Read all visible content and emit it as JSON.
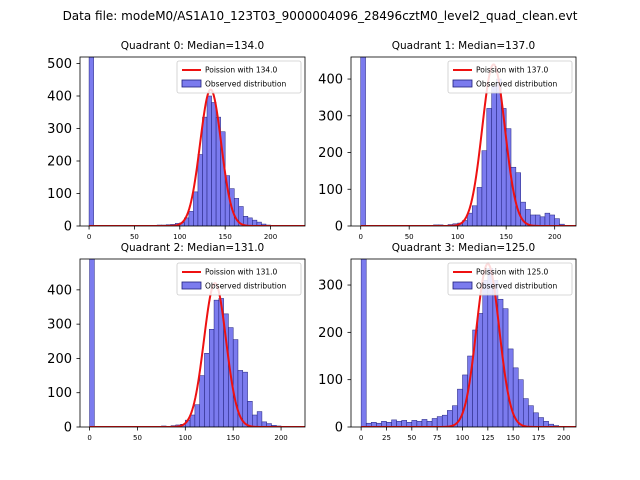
{
  "figure": {
    "suptitle": "Data file: modeM0/AS1A10_123T03_9000004096_28496cztM0_level2_quad_clean.evt"
  },
  "chart_data": [
    {
      "type": "bar",
      "title": "Quadrant 0: Median=134.0",
      "legend": {
        "position": "top-right",
        "curve_label": "Poission with 134.0",
        "hist_label": "Observed distribution"
      },
      "xlim": [
        -10,
        238
      ],
      "ylim": [
        0,
        520
      ],
      "xticks": [
        0,
        50,
        100,
        150,
        200
      ],
      "yticks": [
        0,
        100,
        200,
        300,
        400,
        500
      ],
      "bin_width": 5,
      "median": 134.0,
      "curve_peak": 420,
      "curve_sigma": 11.6,
      "bins": [
        {
          "x": 0,
          "count": 520
        },
        {
          "x": 55,
          "count": 2
        },
        {
          "x": 65,
          "count": 2
        },
        {
          "x": 75,
          "count": 3
        },
        {
          "x": 80,
          "count": 3
        },
        {
          "x": 85,
          "count": 4
        },
        {
          "x": 90,
          "count": 5
        },
        {
          "x": 95,
          "count": 8
        },
        {
          "x": 100,
          "count": 10
        },
        {
          "x": 105,
          "count": 25
        },
        {
          "x": 110,
          "count": 45
        },
        {
          "x": 115,
          "count": 105
        },
        {
          "x": 120,
          "count": 220
        },
        {
          "x": 125,
          "count": 335
        },
        {
          "x": 130,
          "count": 400
        },
        {
          "x": 135,
          "count": 380
        },
        {
          "x": 140,
          "count": 335
        },
        {
          "x": 145,
          "count": 290
        },
        {
          "x": 150,
          "count": 155
        },
        {
          "x": 155,
          "count": 115
        },
        {
          "x": 160,
          "count": 85
        },
        {
          "x": 165,
          "count": 60
        },
        {
          "x": 170,
          "count": 30
        },
        {
          "x": 175,
          "count": 25
        },
        {
          "x": 180,
          "count": 18
        },
        {
          "x": 185,
          "count": 12
        },
        {
          "x": 190,
          "count": 6
        },
        {
          "x": 195,
          "count": 3
        },
        {
          "x": 200,
          "count": 2
        }
      ]
    },
    {
      "type": "bar",
      "title": "Quadrant 1: Median=137.0",
      "legend": {
        "position": "top-right",
        "curve_label": "Poission with 137.0",
        "hist_label": "Observed distribution"
      },
      "xlim": [
        -10,
        222
      ],
      "ylim": [
        0,
        460
      ],
      "xticks": [
        0,
        50,
        100,
        150,
        200
      ],
      "yticks": [
        0,
        100,
        200,
        300,
        400
      ],
      "bin_width": 5,
      "median": 137.0,
      "curve_peak": 440,
      "curve_sigma": 11.7,
      "bins": [
        {
          "x": 0,
          "count": 460
        },
        {
          "x": 75,
          "count": 3
        },
        {
          "x": 80,
          "count": 3
        },
        {
          "x": 85,
          "count": 2
        },
        {
          "x": 90,
          "count": 4
        },
        {
          "x": 95,
          "count": 6
        },
        {
          "x": 100,
          "count": 8
        },
        {
          "x": 105,
          "count": 15
        },
        {
          "x": 110,
          "count": 35
        },
        {
          "x": 115,
          "count": 55
        },
        {
          "x": 120,
          "count": 105
        },
        {
          "x": 125,
          "count": 205
        },
        {
          "x": 130,
          "count": 320
        },
        {
          "x": 135,
          "count": 380
        },
        {
          "x": 140,
          "count": 400
        },
        {
          "x": 145,
          "count": 320
        },
        {
          "x": 150,
          "count": 265
        },
        {
          "x": 155,
          "count": 160
        },
        {
          "x": 160,
          "count": 145
        },
        {
          "x": 165,
          "count": 65
        },
        {
          "x": 170,
          "count": 45
        },
        {
          "x": 175,
          "count": 30
        },
        {
          "x": 180,
          "count": 30
        },
        {
          "x": 185,
          "count": 25
        },
        {
          "x": 190,
          "count": 35
        },
        {
          "x": 195,
          "count": 30
        },
        {
          "x": 200,
          "count": 20
        },
        {
          "x": 205,
          "count": 5
        }
      ]
    },
    {
      "type": "bar",
      "title": "Quadrant 2: Median=131.0",
      "legend": {
        "position": "top-right",
        "curve_label": "Poission with 131.0",
        "hist_label": "Observed distribution"
      },
      "xlim": [
        -10,
        225
      ],
      "ylim": [
        0,
        490
      ],
      "xticks": [
        0,
        50,
        100,
        150,
        200
      ],
      "yticks": [
        0,
        100,
        200,
        300,
        400
      ],
      "bin_width": 5,
      "median": 131.0,
      "curve_peak": 420,
      "curve_sigma": 11.5,
      "bins": [
        {
          "x": 0,
          "count": 490
        },
        {
          "x": 75,
          "count": 3
        },
        {
          "x": 80,
          "count": 2
        },
        {
          "x": 85,
          "count": 4
        },
        {
          "x": 90,
          "count": 6
        },
        {
          "x": 95,
          "count": 8
        },
        {
          "x": 100,
          "count": 20
        },
        {
          "x": 105,
          "count": 35
        },
        {
          "x": 110,
          "count": 65
        },
        {
          "x": 115,
          "count": 150
        },
        {
          "x": 120,
          "count": 215
        },
        {
          "x": 125,
          "count": 285
        },
        {
          "x": 130,
          "count": 370
        },
        {
          "x": 135,
          "count": 375
        },
        {
          "x": 140,
          "count": 330
        },
        {
          "x": 145,
          "count": 290
        },
        {
          "x": 150,
          "count": 255
        },
        {
          "x": 155,
          "count": 165
        },
        {
          "x": 160,
          "count": 160
        },
        {
          "x": 165,
          "count": 75
        },
        {
          "x": 170,
          "count": 35
        },
        {
          "x": 175,
          "count": 45
        },
        {
          "x": 180,
          "count": 15
        },
        {
          "x": 185,
          "count": 10
        },
        {
          "x": 190,
          "count": 5
        },
        {
          "x": 195,
          "count": 3
        }
      ]
    },
    {
      "type": "bar",
      "title": "Quadrant 3: Median=125.0",
      "legend": {
        "position": "top-right",
        "curve_label": "Poission with 125.0",
        "hist_label": "Observed distribution"
      },
      "xlim": [
        -10,
        212
      ],
      "ylim": [
        0,
        355
      ],
      "xticks": [
        0,
        25,
        50,
        75,
        100,
        125,
        150,
        175,
        200
      ],
      "yticks": [
        0,
        100,
        200,
        300
      ],
      "bin_width": 5,
      "median": 125.0,
      "curve_peak": 345,
      "curve_sigma": 11.2,
      "bins": [
        {
          "x": 0,
          "count": 355
        },
        {
          "x": 5,
          "count": 8
        },
        {
          "x": 10,
          "count": 10
        },
        {
          "x": 15,
          "count": 8
        },
        {
          "x": 20,
          "count": 12
        },
        {
          "x": 25,
          "count": 10
        },
        {
          "x": 30,
          "count": 15
        },
        {
          "x": 35,
          "count": 12
        },
        {
          "x": 40,
          "count": 14
        },
        {
          "x": 45,
          "count": 10
        },
        {
          "x": 50,
          "count": 14
        },
        {
          "x": 55,
          "count": 12
        },
        {
          "x": 60,
          "count": 16
        },
        {
          "x": 65,
          "count": 12
        },
        {
          "x": 70,
          "count": 18
        },
        {
          "x": 75,
          "count": 22
        },
        {
          "x": 80,
          "count": 25
        },
        {
          "x": 85,
          "count": 35
        },
        {
          "x": 90,
          "count": 45
        },
        {
          "x": 95,
          "count": 80
        },
        {
          "x": 100,
          "count": 110
        },
        {
          "x": 105,
          "count": 150
        },
        {
          "x": 110,
          "count": 205
        },
        {
          "x": 115,
          "count": 240
        },
        {
          "x": 120,
          "count": 310
        },
        {
          "x": 125,
          "count": 335
        },
        {
          "x": 130,
          "count": 310
        },
        {
          "x": 135,
          "count": 270
        },
        {
          "x": 140,
          "count": 250
        },
        {
          "x": 145,
          "count": 165
        },
        {
          "x": 150,
          "count": 125
        },
        {
          "x": 155,
          "count": 100
        },
        {
          "x": 160,
          "count": 60
        },
        {
          "x": 165,
          "count": 45
        },
        {
          "x": 170,
          "count": 30
        },
        {
          "x": 175,
          "count": 20
        },
        {
          "x": 180,
          "count": 12
        },
        {
          "x": 185,
          "count": 6
        },
        {
          "x": 190,
          "count": 3
        }
      ]
    }
  ]
}
